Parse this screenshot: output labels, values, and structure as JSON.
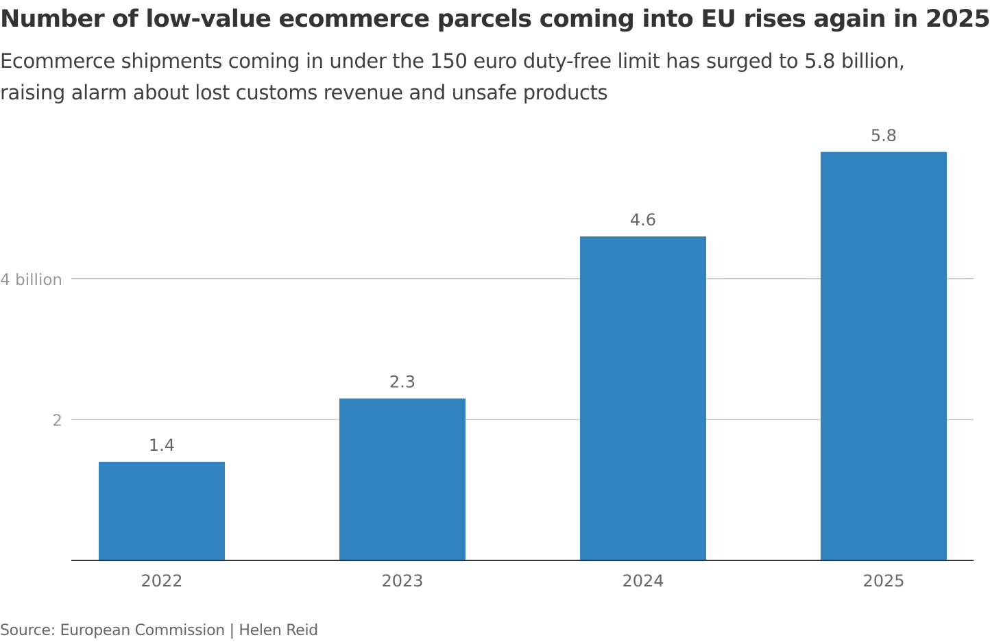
{
  "chart_data": {
    "type": "bar",
    "title": "Number of low-value ecommerce parcels coming into EU rises again in 2025",
    "subtitle": "Ecommerce shipments coming in under the 150 euro duty-free limit has surged to 5.8 billion, raising alarm about lost customs revenue and  unsafe products",
    "categories": [
      "2022",
      "2023",
      "2024",
      "2025"
    ],
    "values": [
      1.4,
      2.3,
      4.6,
      5.8
    ],
    "data_labels": [
      "1.4",
      "2.3",
      "4.6",
      "5.8"
    ],
    "yticks": [
      {
        "value": 2,
        "label": "2"
      },
      {
        "value": 4,
        "label": "4 billion"
      }
    ],
    "ylim": [
      0,
      6
    ],
    "grid": true,
    "xlabel": "",
    "ylabel": "",
    "bar_color": "#3182bd",
    "source": "Source: European Commission | Helen Reid"
  }
}
